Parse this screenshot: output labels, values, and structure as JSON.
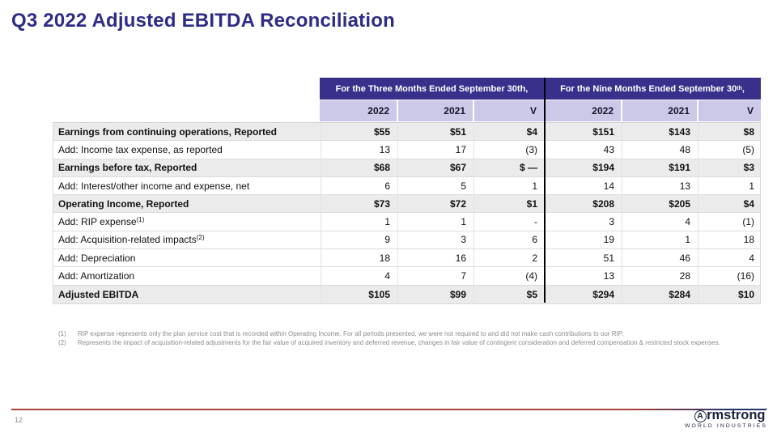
{
  "slide": {
    "title": "Q3 2022 Adjusted EBITDA Reconciliation",
    "page_number": "12"
  },
  "colors": {
    "title": "#2E2C87",
    "banner_purple": "#39308B",
    "year_lavender": "#CBC8E8",
    "shaded_row": "#EBEBEB",
    "footer_red": "#AC4339",
    "footer_navy": "#23356B",
    "logo_navy": "#1B2140"
  },
  "table": {
    "groups": [
      {
        "text": "For the Three Months Ended September 30th,",
        "sup": "",
        "tail": ""
      },
      {
        "text": "For the Nine Months Ended September 30",
        "sup": "th",
        "tail": ","
      }
    ],
    "year_columns": [
      "2022",
      "2021",
      "V",
      "2022",
      "2021",
      "V"
    ],
    "rows": [
      {
        "label": "Earnings from continuing operations, Reported",
        "sup": "",
        "bold": true,
        "values": [
          "$55",
          "$51",
          "$4",
          "$151",
          "$143",
          "$8"
        ]
      },
      {
        "label": "Add: Income tax expense, as reported",
        "sup": "",
        "bold": false,
        "values": [
          "13",
          "17",
          "(3)",
          "43",
          "48",
          "(5)"
        ]
      },
      {
        "label": "Earnings before tax, Reported",
        "sup": "",
        "bold": true,
        "values": [
          "$68",
          "$67",
          "$ —",
          "$194",
          "$191",
          "$3"
        ]
      },
      {
        "label": "Add: Interest/other income and expense, net",
        "sup": "",
        "bold": false,
        "values": [
          "6",
          "5",
          "1",
          "14",
          "13",
          "1"
        ]
      },
      {
        "label": "Operating Income, Reported",
        "sup": "",
        "bold": true,
        "values": [
          "$73",
          "$72",
          "$1",
          "$208",
          "$205",
          "$4"
        ]
      },
      {
        "label": "Add: RIP expense",
        "sup": "(1)",
        "bold": false,
        "values": [
          "1",
          "1",
          "-",
          "3",
          "4",
          "(1)"
        ]
      },
      {
        "label": "Add: Acquisition-related impacts",
        "sup": "(2)",
        "bold": false,
        "values": [
          "9",
          "3",
          "6",
          "19",
          "1",
          "18"
        ]
      },
      {
        "label": "Add: Depreciation",
        "sup": "",
        "bold": false,
        "values": [
          "18",
          "16",
          "2",
          "51",
          "46",
          "4"
        ]
      },
      {
        "label": "Add: Amortization",
        "sup": "",
        "bold": false,
        "values": [
          "4",
          "7",
          "(4)",
          "13",
          "28",
          "(16)"
        ]
      },
      {
        "label": "Adjusted EBITDA",
        "sup": "",
        "bold": true,
        "values": [
          "$105",
          "$99",
          "$5",
          "$294",
          "$284",
          "$10"
        ]
      }
    ]
  },
  "footnotes": [
    {
      "marker": "(1)",
      "text": "RIP expense represents only the plan service cost that is recorded within Operating Income. For all periods presented, we were not required to and did not make cash contributions to our RIP."
    },
    {
      "marker": "(2)",
      "text": "Represents the impact of acquisition-related adjustments for the fair value of acquired inventory and deferred revenue, changes in fair value of contingent consideration and deferred compensation & restricted stock expenses."
    }
  ],
  "logo": {
    "first_letter": "A",
    "rest": "rmstrong",
    "mark": "’",
    "subtitle": "WORLD INDUSTRIES"
  }
}
